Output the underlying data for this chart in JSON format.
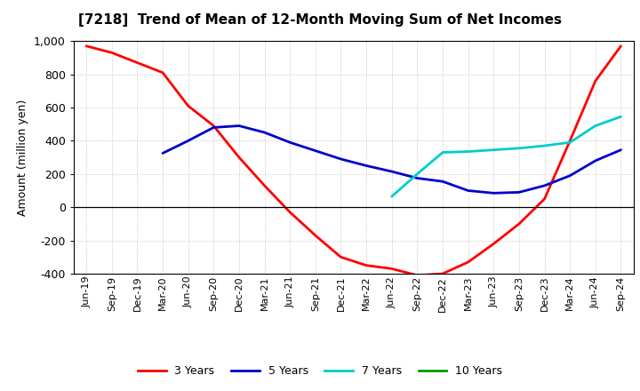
{
  "title": "[7218]  Trend of Mean of 12-Month Moving Sum of Net Incomes",
  "ylabel": "Amount (million yen)",
  "background_color": "#ffffff",
  "grid_color": "#bbbbbb",
  "ylim": [
    -400,
    1000
  ],
  "yticks": [
    -400,
    -200,
    0,
    200,
    400,
    600,
    800,
    1000
  ],
  "xlabels": [
    "Jun-19",
    "Sep-19",
    "Dec-19",
    "Mar-20",
    "Jun-20",
    "Sep-20",
    "Dec-20",
    "Mar-21",
    "Jun-21",
    "Sep-21",
    "Dec-21",
    "Mar-22",
    "Jun-22",
    "Sep-22",
    "Dec-22",
    "Mar-23",
    "Jun-23",
    "Sep-23",
    "Dec-23",
    "Mar-24",
    "Jun-24",
    "Sep-24"
  ],
  "series": {
    "3 Years": {
      "color": "#ff0000",
      "data": [
        970,
        930,
        870,
        810,
        610,
        490,
        300,
        130,
        -30,
        -170,
        -300,
        -350,
        -370,
        -410,
        -400,
        -330,
        -220,
        -100,
        50,
        400,
        760,
        970
      ]
    },
    "5 Years": {
      "color": "#0000cc",
      "data": [
        null,
        null,
        null,
        325,
        400,
        480,
        490,
        450,
        390,
        340,
        290,
        250,
        215,
        175,
        155,
        100,
        85,
        90,
        130,
        190,
        280,
        345
      ]
    },
    "7 Years": {
      "color": "#00cccc",
      "data": [
        null,
        null,
        null,
        null,
        null,
        null,
        null,
        null,
        null,
        null,
        null,
        null,
        65,
        200,
        330,
        335,
        345,
        355,
        370,
        390,
        490,
        545
      ]
    },
    "10 Years": {
      "color": "#009900",
      "data": [
        null,
        null,
        null,
        null,
        null,
        null,
        null,
        null,
        null,
        null,
        null,
        null,
        null,
        null,
        null,
        null,
        null,
        null,
        null,
        null,
        null,
        null
      ]
    }
  },
  "legend_labels": [
    "3 Years",
    "5 Years",
    "7 Years",
    "10 Years"
  ],
  "legend_colors": [
    "#ff0000",
    "#0000cc",
    "#00cccc",
    "#009900"
  ]
}
